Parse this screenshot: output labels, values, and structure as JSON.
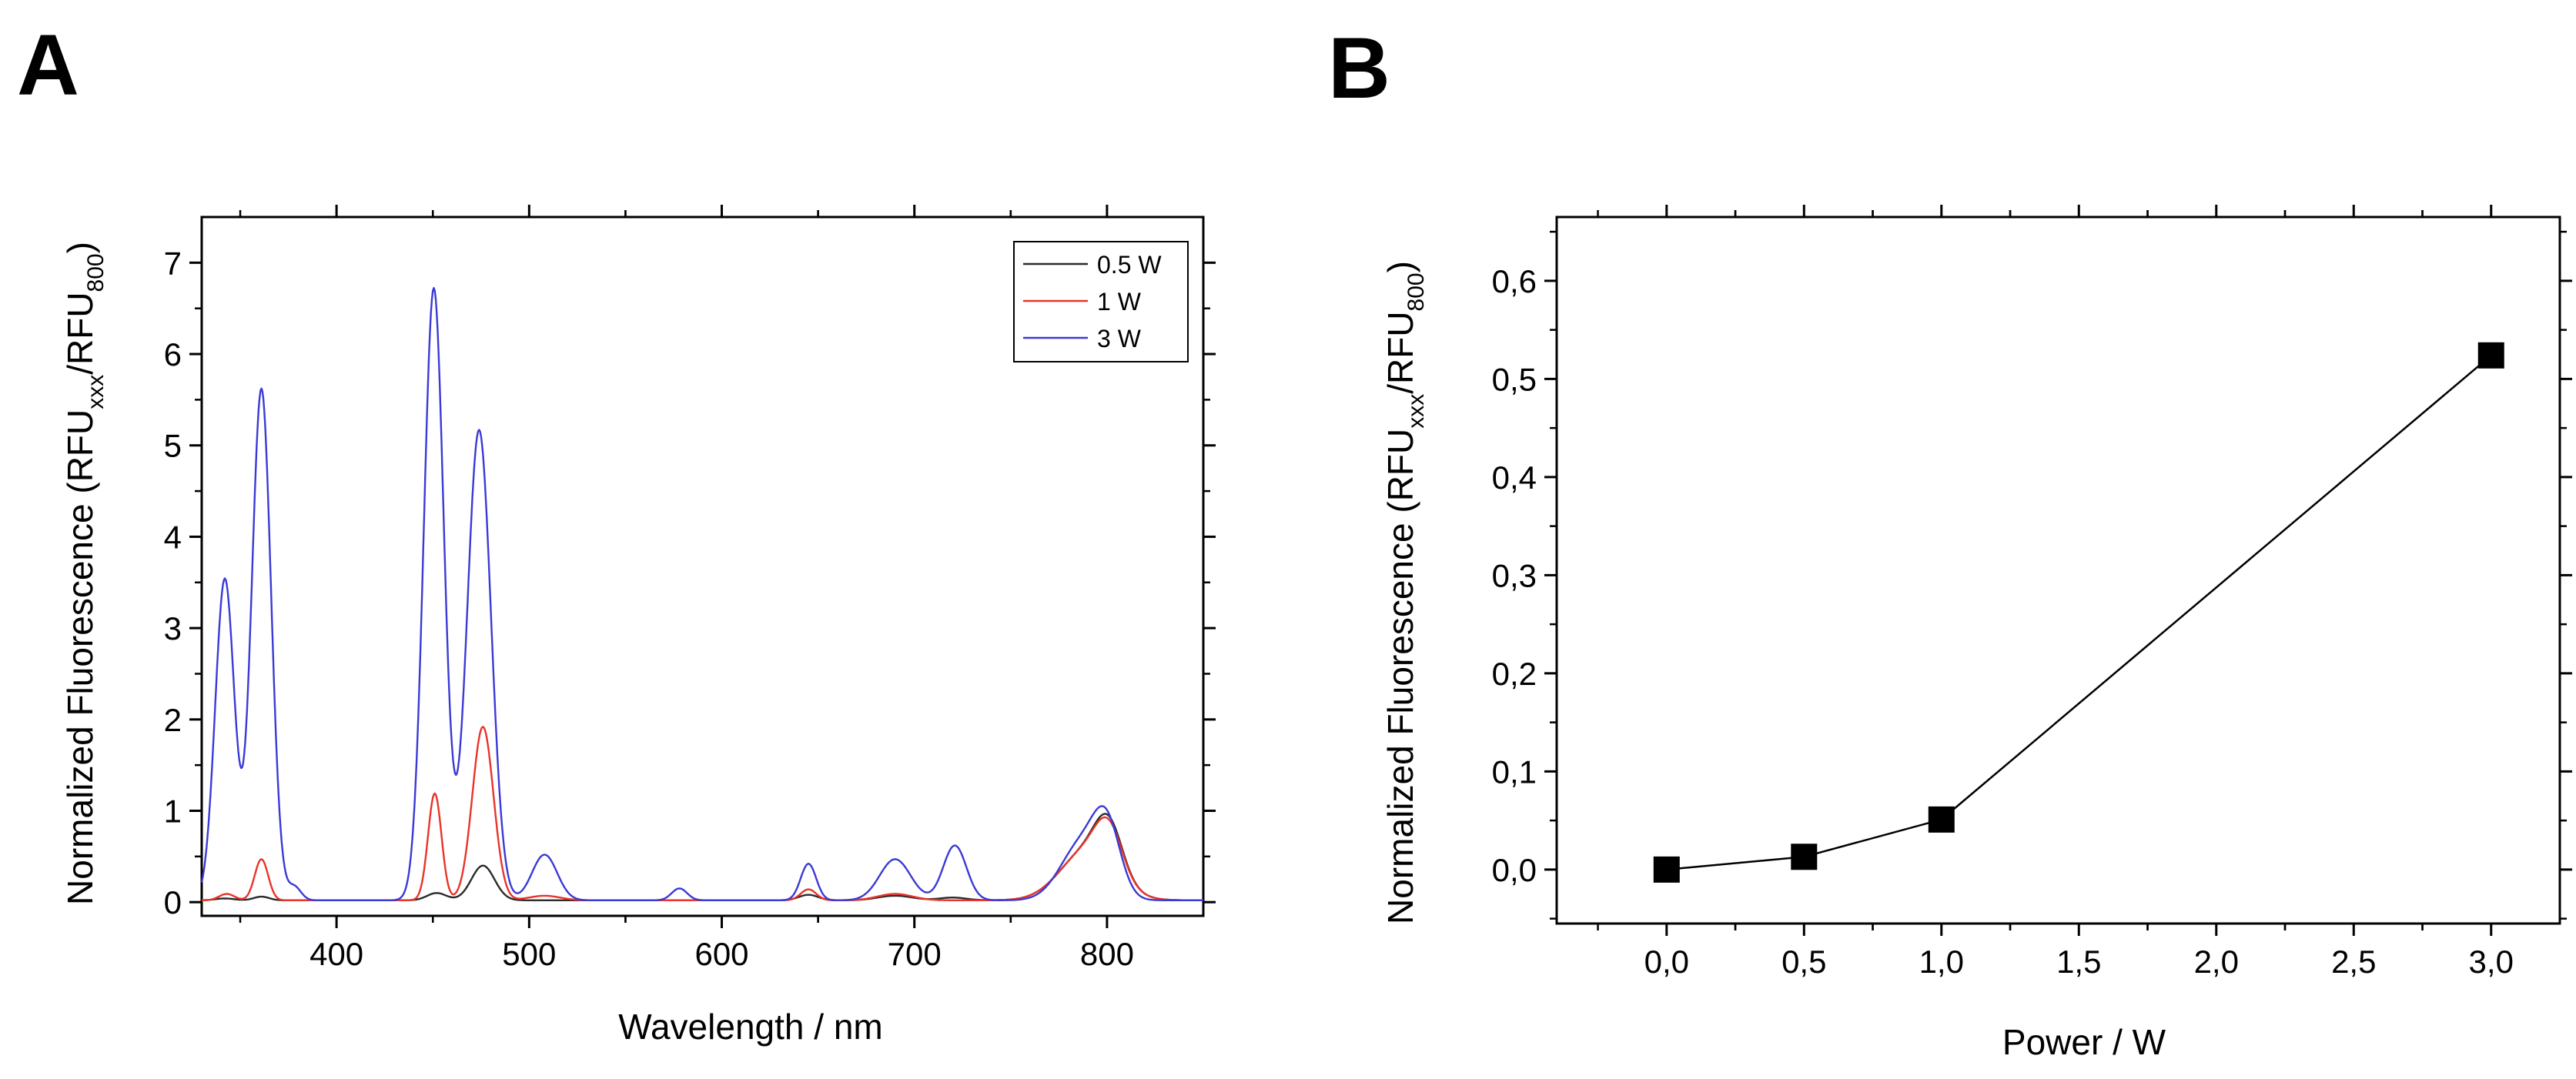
{
  "figure": {
    "panels": [
      "A",
      "B"
    ]
  },
  "colors": {
    "axis": "#000000",
    "series_0_5W": "#2b2b2b",
    "series_1W": "#e8342a",
    "series_3W": "#3a3ad6"
  },
  "chart_data": [
    {
      "panel": "A",
      "type": "line",
      "title": "",
      "xlabel": "Wavelength / nm",
      "ylabel_main": "Normalized Fluorescence (RFU",
      "ylabel_sub1": "xxx",
      "ylabel_mid": "/RFU",
      "ylabel_sub2": "800",
      "ylabel_end": ")",
      "xlim": [
        330,
        850
      ],
      "ylim": [
        -0.15,
        7.5
      ],
      "xticks": [
        400,
        500,
        600,
        700,
        800
      ],
      "xtick_labels": [
        "400",
        "500",
        "600",
        "700",
        "800"
      ],
      "yticks": [
        0,
        1,
        2,
        3,
        4,
        5,
        6,
        7
      ],
      "ytick_labels": [
        "0",
        "1",
        "2",
        "3",
        "4",
        "5",
        "6",
        "7"
      ],
      "grid": false,
      "legend_position": "top-right",
      "baseline": 0.02,
      "series": [
        {
          "name": "0.5 W",
          "color": "#2b2b2b",
          "peaks": [
            [
              342,
              0.02,
              5
            ],
            [
              361,
              0.04,
              4
            ],
            [
              452,
              0.08,
              5
            ],
            [
              476,
              0.38,
              6
            ],
            [
              645,
              0.06,
              5
            ],
            [
              690,
              0.05,
              9
            ],
            [
              720,
              0.03,
              7
            ],
            [
              790,
              0.55,
              14
            ],
            [
              801,
              0.52,
              7
            ]
          ]
        },
        {
          "name": "1 W",
          "color": "#e8342a",
          "peaks": [
            [
              343,
              0.07,
              4
            ],
            [
              361,
              0.45,
              3.5
            ],
            [
              451,
              1.17,
              3.5
            ],
            [
              476,
              1.9,
              5.5
            ],
            [
              508,
              0.05,
              8
            ],
            [
              645,
              0.12,
              4
            ],
            [
              690,
              0.07,
              9
            ],
            [
              790,
              0.55,
              14
            ],
            [
              801,
              0.48,
              7
            ]
          ]
        },
        {
          "name": "3 W",
          "color": "#3a3ad6",
          "peaks": [
            [
              342,
              3.52,
              5
            ],
            [
              361,
              5.6,
              5
            ],
            [
              378,
              0.15,
              3.5
            ],
            [
              450.5,
              6.7,
              5.2
            ],
            [
              474,
              5.15,
              6.2
            ],
            [
              508,
              0.5,
              6.5
            ],
            [
              578,
              0.13,
              4
            ],
            [
              645,
              0.4,
              4
            ],
            [
              690,
              0.45,
              8
            ],
            [
              721,
              0.6,
              6
            ],
            [
              787,
              0.62,
              11
            ],
            [
              800,
              0.68,
              7
            ]
          ]
        }
      ]
    },
    {
      "panel": "B",
      "type": "line",
      "title": "",
      "xlabel": "Power / W",
      "ylabel_main": "Normalized Fluorescence (RFU",
      "ylabel_sub1": "xxx",
      "ylabel_mid": "/RFU",
      "ylabel_sub2": "800",
      "ylabel_end": ")",
      "xlim": [
        -0.4,
        3.25
      ],
      "ylim": [
        -0.055,
        0.665
      ],
      "xticks": [
        0,
        0.5,
        1,
        1.5,
        2,
        2.5,
        3
      ],
      "xtick_labels": [
        "0,0",
        "0,5",
        "1,0",
        "1,5",
        "2,0",
        "2,5",
        "3,0"
      ],
      "yticks": [
        0,
        0.1,
        0.2,
        0.3,
        0.4,
        0.5,
        0.6
      ],
      "ytick_labels": [
        "0,0",
        "0,1",
        "0,2",
        "0,3",
        "0,4",
        "0,5",
        "0,6"
      ],
      "grid": false,
      "x": [
        0,
        0.5,
        1,
        3
      ],
      "y": [
        0.0,
        0.013,
        0.051,
        0.524
      ],
      "marker": "square"
    }
  ]
}
